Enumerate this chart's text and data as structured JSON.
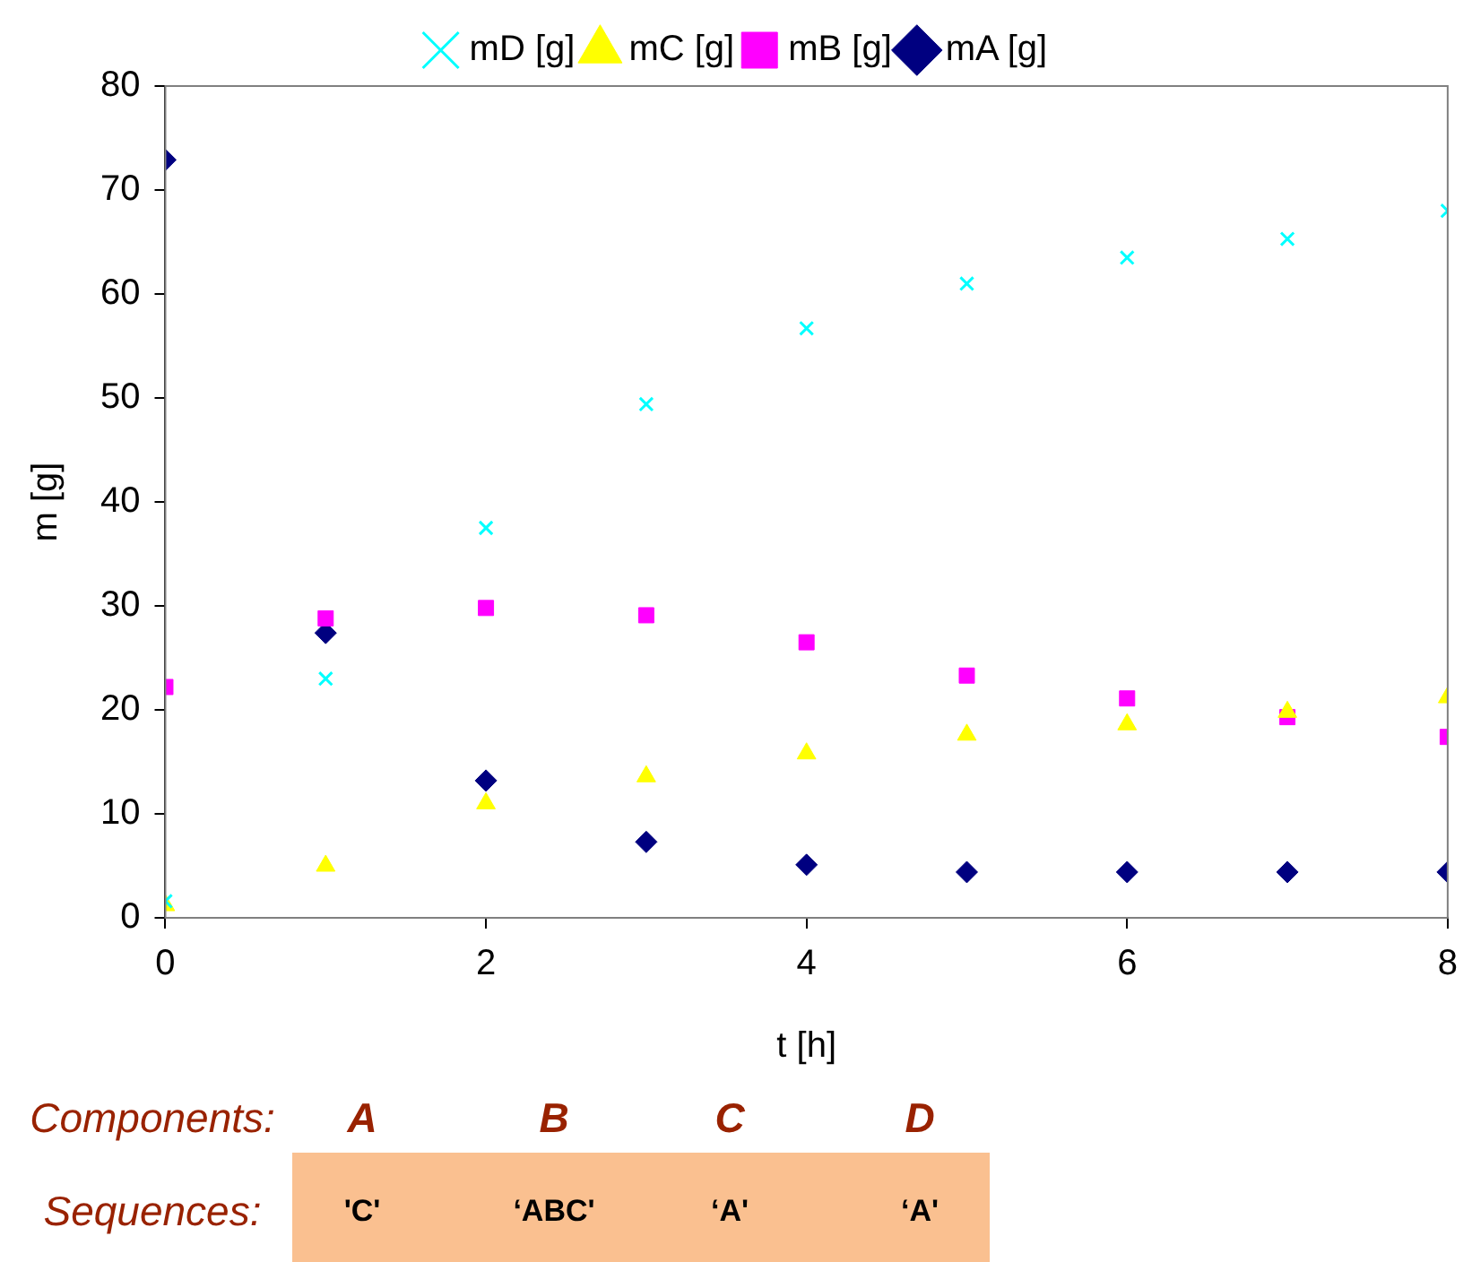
{
  "chart_data": {
    "type": "scatter",
    "xlabel": "t [h]",
    "ylabel": "m [g]",
    "x": [
      0,
      1,
      2,
      3,
      4,
      5,
      6,
      7,
      8
    ],
    "xlim": [
      0,
      8
    ],
    "xticks": [
      0,
      2,
      4,
      6,
      8
    ],
    "ylim": [
      0,
      80
    ],
    "yticks": [
      0,
      10,
      20,
      30,
      40,
      50,
      60,
      70,
      80
    ],
    "grid": false,
    "legend": "top",
    "series": [
      {
        "name": "mA [g]",
        "color": "#000080",
        "marker": "diamond",
        "values": [
          72.9,
          27.4,
          13.2,
          7.3,
          5.1,
          4.4,
          4.4,
          4.4,
          4.4
        ]
      },
      {
        "name": "mB [g]",
        "color": "#ff00ff",
        "marker": "square",
        "values": [
          22.2,
          28.8,
          29.8,
          29.1,
          26.5,
          23.3,
          21.1,
          19.3,
          17.4
        ]
      },
      {
        "name": "mC [g]",
        "color": "#ffff00",
        "marker": "triangle",
        "values": [
          1.2,
          5,
          11,
          13.6,
          15.8,
          17.6,
          18.6,
          19.8,
          21.2
        ]
      },
      {
        "name": "mD [g]",
        "color": "#00ffff",
        "marker": "cross",
        "values": [
          1.6,
          23,
          37.5,
          49.4,
          56.7,
          61,
          63.5,
          65.3,
          68
        ]
      }
    ],
    "annotations": [
      "Components:",
      "A",
      "B",
      "C",
      "D",
      "Sequences:",
      "'C'",
      "‘ABC'",
      "‘A'",
      "‘A'"
    ]
  }
}
